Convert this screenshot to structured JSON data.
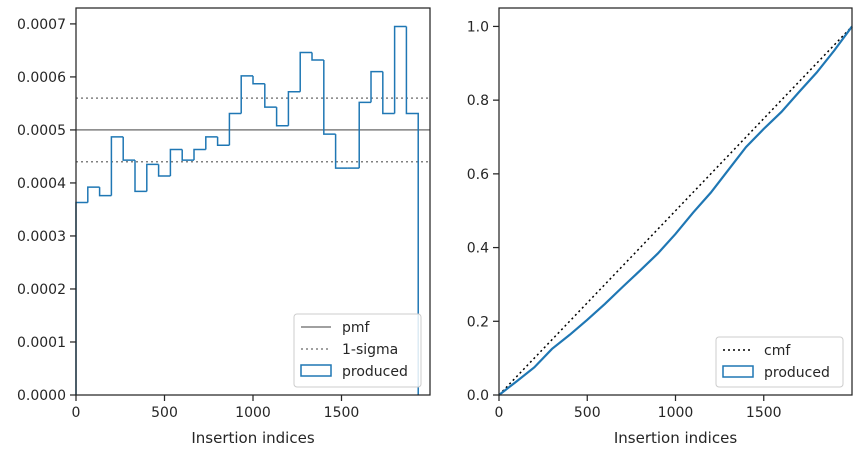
{
  "chart_data": [
    {
      "type": "histogram-step",
      "xlabel": "Insertion indices",
      "ylabel": "",
      "xlim": [
        0,
        2000
      ],
      "ylim": [
        0,
        0.00073
      ],
      "xticks": [
        0,
        500,
        1000,
        1500
      ],
      "xtick_labels": [
        "0",
        "500",
        "1000",
        "1500"
      ],
      "yticks": [
        0,
        0.0001,
        0.0002,
        0.0003,
        0.0004,
        0.0005,
        0.0006,
        0.0007
      ],
      "ytick_labels": [
        "0.0000",
        "0.0001",
        "0.0002",
        "0.0003",
        "0.0004",
        "0.0005",
        "0.0006",
        "0.0007"
      ],
      "bin_width": 66.67,
      "series": [
        {
          "name": "produced",
          "color": "#1f77b4",
          "values": [
            0.000363,
            0.000392,
            0.000376,
            0.000487,
            0.000443,
            0.000384,
            0.000435,
            0.000413,
            0.000463,
            0.000443,
            0.000463,
            0.000487,
            0.000471,
            0.000531,
            0.000602,
            0.000587,
            0.000543,
            0.000508,
            0.000572,
            0.000646,
            0.000632,
            0.000492,
            0.000428,
            0.000428,
            0.000552,
            0.00061,
            0.000531,
            0.000695,
            0.000531
          ]
        }
      ],
      "reference_lines": [
        {
          "name": "pmf",
          "y": 0.0005,
          "style": "solid",
          "color": "#808080"
        },
        {
          "name": "1-sigma",
          "y": 0.00056,
          "style": "dotted",
          "color": "#808080"
        },
        {
          "name": "1-sigma",
          "y": 0.00044,
          "style": "dotted",
          "color": "#808080"
        }
      ],
      "legend": {
        "placement": "lower-right",
        "entries": [
          "pmf",
          "1-sigma",
          "produced"
        ]
      },
      "grid": false
    },
    {
      "type": "line",
      "xlabel": "Insertion indices",
      "ylabel": "",
      "xlim": [
        0,
        2000
      ],
      "ylim": [
        0,
        1.05
      ],
      "xticks": [
        0,
        500,
        1000,
        1500
      ],
      "xtick_labels": [
        "0",
        "500",
        "1000",
        "1500"
      ],
      "yticks": [
        0,
        0.2,
        0.4,
        0.6,
        0.8,
        1.0
      ],
      "ytick_labels": [
        "0.0",
        "0.2",
        "0.4",
        "0.6",
        "0.8",
        "1.0"
      ],
      "series": [
        {
          "name": "cmf",
          "color": "#000000",
          "style": "dotted",
          "x": [
            0,
            2000
          ],
          "y": [
            0,
            1.0
          ]
        },
        {
          "name": "produced",
          "color": "#1f77b4",
          "style": "solid",
          "x": [
            0,
            100,
            200,
            300,
            400,
            500,
            600,
            700,
            800,
            900,
            1000,
            1100,
            1200,
            1300,
            1400,
            1500,
            1600,
            1700,
            1800,
            1900,
            2000
          ],
          "y": [
            0,
            0.037,
            0.075,
            0.125,
            0.163,
            0.204,
            0.247,
            0.293,
            0.338,
            0.384,
            0.437,
            0.495,
            0.549,
            0.611,
            0.673,
            0.722,
            0.768,
            0.822,
            0.875,
            0.935,
            1.0
          ]
        }
      ],
      "legend": {
        "placement": "lower-right",
        "entries": [
          "cmf",
          "produced"
        ]
      },
      "grid": false
    }
  ]
}
